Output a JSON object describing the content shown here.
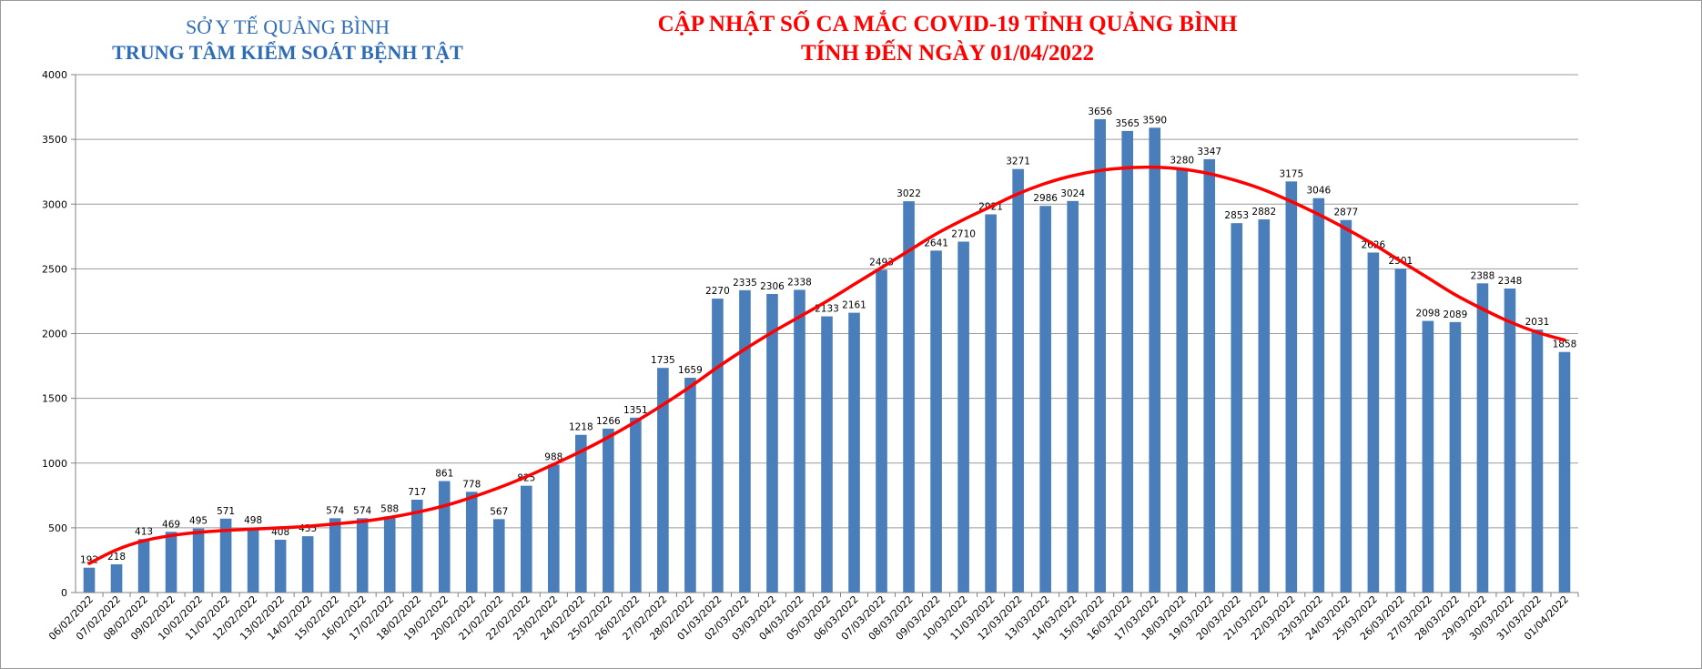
{
  "header": {
    "org_line1": "SỞ Y TẾ QUẢNG BÌNH",
    "org_line2": "TRUNG TÂM KIỂM SOÁT BỆNH TẬT",
    "title_line1": "CẬP NHẬT SỐ CA MẮC COVID-19 TỈNH QUẢNG BÌNH",
    "title_line2": "TÍNH ĐẾN NGÀY 01/04/2022"
  },
  "colors": {
    "bar": "#4a7ebb",
    "trend_line": "#ff0000",
    "org_text": "#2e6db5",
    "title_text": "#ff0000",
    "gridline": "#9a9a9a"
  },
  "chart_data": {
    "type": "bar",
    "title": "CẬP NHẬT SỐ CA MẮC COVID-19 TỈNH QUẢNG BÌNH",
    "subtitle": "TÍNH ĐẾN NGÀY 01/04/2022",
    "xlabel": "",
    "ylabel": "",
    "ylim": [
      0,
      4000
    ],
    "y_ticks": [
      0,
      500,
      1000,
      1500,
      2000,
      2500,
      3000,
      3500,
      4000
    ],
    "grid": true,
    "legend": "none",
    "categories": [
      "06/02/2022",
      "07/02/2022",
      "08/02/2022",
      "09/02/2022",
      "10/02/2022",
      "11/02/2022",
      "12/02/2022",
      "13/02/2022",
      "14/02/2022",
      "15/02/2022",
      "16/02/2022",
      "17/02/2022",
      "18/02/2022",
      "19/02/2022",
      "20/02/2022",
      "21/02/2022",
      "22/02/2022",
      "23/02/2022",
      "24/02/2022",
      "25/02/2022",
      "26/02/2022",
      "27/02/2022",
      "28/02/2022",
      "01/03/2022",
      "02/03/2022",
      "03/03/2022",
      "04/03/2022",
      "05/03/2022",
      "06/03/2022",
      "07/03/2022",
      "08/03/2022",
      "09/03/2022",
      "10/03/2022",
      "11/03/2022",
      "12/03/2022",
      "13/03/2022",
      "14/03/2022",
      "15/03/2022",
      "16/03/2022",
      "17/03/2022",
      "18/03/2022",
      "19/03/2022",
      "20/03/2022",
      "21/03/2022",
      "22/03/2022",
      "23/03/2022",
      "24/03/2022",
      "25/03/2022",
      "26/03/2022",
      "27/03/2022",
      "28/03/2022",
      "29/03/2022",
      "30/03/2022",
      "31/03/2022",
      "01/04/2022"
    ],
    "values": [
      192,
      218,
      413,
      469,
      495,
      571,
      498,
      408,
      435,
      574,
      574,
      588,
      717,
      861,
      778,
      567,
      825,
      988,
      1218,
      1266,
      1351,
      1735,
      1659,
      2270,
      2335,
      2306,
      2338,
      2133,
      2161,
      2493,
      3022,
      2641,
      2710,
      2921,
      3271,
      2986,
      3024,
      3656,
      3565,
      3590,
      3280,
      3347,
      2853,
      2882,
      3175,
      3046,
      2877,
      2626,
      2501,
      2098,
      2089,
      2388,
      2348,
      2031,
      1858
    ],
    "trendline": {
      "type": "polynomial",
      "values": [
        225,
        330,
        400,
        440,
        465,
        480,
        490,
        500,
        512,
        530,
        550,
        580,
        620,
        670,
        735,
        810,
        895,
        990,
        1090,
        1200,
        1320,
        1450,
        1590,
        1740,
        1880,
        2010,
        2130,
        2250,
        2380,
        2510,
        2640,
        2770,
        2880,
        2980,
        3080,
        3160,
        3220,
        3260,
        3280,
        3285,
        3270,
        3235,
        3180,
        3110,
        3020,
        2920,
        2810,
        2690,
        2560,
        2430,
        2300,
        2190,
        2090,
        2010,
        1950
      ]
    }
  }
}
